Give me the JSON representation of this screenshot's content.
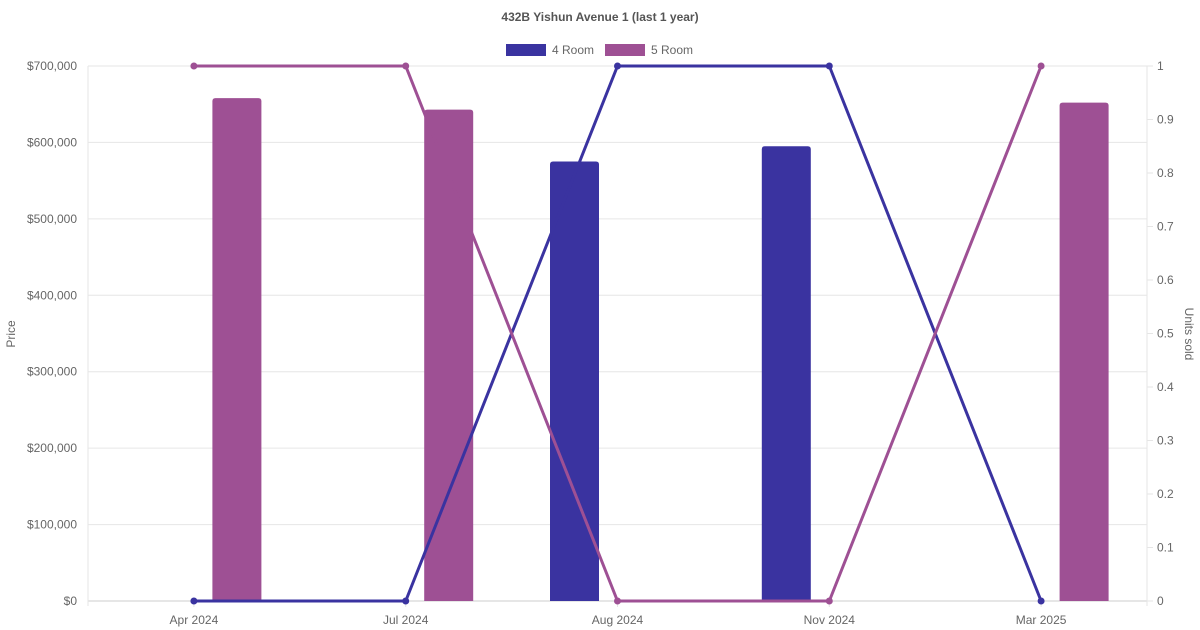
{
  "chart_data": {
    "type": "bar",
    "title": "432B Yishun Avenue 1 (last 1 year)",
    "categories": [
      "Apr 2024",
      "Jul 2024",
      "Aug 2024",
      "Nov 2024",
      "Mar 2025"
    ],
    "ylabel_left": "Price",
    "ylabel_right": "Units sold",
    "y_left_range": [
      0,
      700000
    ],
    "y_left_ticks": [
      "$0",
      "$100,000",
      "$200,000",
      "$300,000",
      "$400,000",
      "$500,000",
      "$600,000",
      "$700,000"
    ],
    "y_right_range": [
      0,
      1
    ],
    "y_right_ticks": [
      "0",
      "0.1",
      "0.2",
      "0.3",
      "0.4",
      "0.5",
      "0.6",
      "0.7",
      "0.8",
      "0.9",
      "1"
    ],
    "grid": true,
    "legend_position": "top",
    "series": [
      {
        "name": "4 Room",
        "color": "#3a33a0",
        "price": [
          null,
          null,
          575000,
          595000,
          null
        ],
        "units_sold": [
          0,
          0,
          1,
          1,
          0
        ]
      },
      {
        "name": "5 Room",
        "color": "#9e5094",
        "price": [
          658000,
          643000,
          null,
          null,
          652000
        ],
        "units_sold": [
          1,
          1,
          0,
          0,
          1
        ]
      }
    ]
  }
}
